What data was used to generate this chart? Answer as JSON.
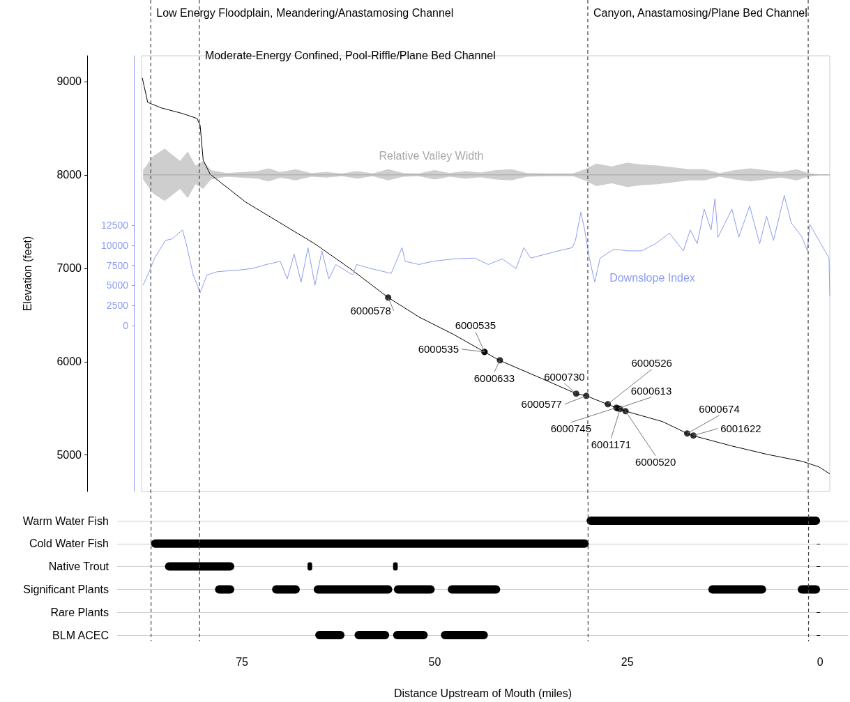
{
  "chart_data": [
    {
      "type": "line",
      "ylabel": "Elevation (feet)",
      "xlim": [
        88,
        -1.3
      ],
      "xticks": [
        75,
        50,
        25,
        0
      ],
      "ylim": [
        4610,
        9275
      ],
      "yticks": [
        5000,
        6000,
        7000,
        8000,
        9000
      ],
      "y2lim": [
        -20660,
        33590
      ],
      "y2ticks": [
        0,
        2500,
        5000,
        7500,
        10000,
        12500
      ],
      "tick_labels": "y",
      "marker": "none",
      "series": [
        {
          "color": "#000000",
          "x": [
            87.9,
            87.2,
            85.4,
            82.7,
            80.8,
            80.4,
            80.0,
            79.1,
            74.5,
            70.0,
            65.5,
            61.0,
            56.0,
            52.0,
            47.5,
            43.5,
            41.6,
            35.7,
            31.6,
            30.3,
            27.6,
            25.2,
            20.4,
            17.2,
            16.5,
            11.4,
            6.8,
            2.3,
            0.1,
            -1.3
          ],
          "values": [
            9037,
            8776,
            8716,
            8657,
            8604,
            8530,
            8157,
            8007,
            7709,
            7485,
            7261,
            7000,
            6687,
            6478,
            6291,
            6104,
            6015,
            5806,
            5657,
            5634,
            5545,
            5470,
            5358,
            5231,
            5209,
            5097,
            5007,
            4933,
            4873,
            4798
          ]
        },
        {
          "name": "Downslope Index",
          "color": "#8c9cf0",
          "axis": "y2",
          "x": [
            87.8,
            87.2,
            86.3,
            84.9,
            84.0,
            82.7,
            82.2,
            81.3,
            80.4,
            79.5,
            78.2,
            75.5,
            73.6,
            71.8,
            70.0,
            69.1,
            68.2,
            67.3,
            66.4,
            65.5,
            64.6,
            63.7,
            62.8,
            60.6,
            60.1,
            58.3,
            55.6,
            54.2,
            53.8,
            52.0,
            50.2,
            47.5,
            44.8,
            43.0,
            41.2,
            39.4,
            38.4,
            37.5,
            33.9,
            32.1,
            31.7,
            31.0,
            30.5,
            29.9,
            29.2,
            28.5,
            26.7,
            24.9,
            23.1,
            21.3,
            19.5,
            17.7,
            16.8,
            15.9,
            15.0,
            14.1,
            13.6,
            13.2,
            11.4,
            10.5,
            9.1,
            7.8,
            6.9,
            6.0,
            4.6,
            3.7,
            2.3,
            1.6,
            1.3,
            0.1,
            -1.2,
            -1.3
          ],
          "values": [
            5000,
            6300,
            8400,
            10600,
            10800,
            11900,
            10200,
            6300,
            4100,
            6300,
            6700,
            6900,
            7100,
            7600,
            8000,
            5800,
            8900,
            5400,
            9700,
            5000,
            9300,
            5800,
            7600,
            6300,
            7600,
            7100,
            6500,
            9700,
            8000,
            7600,
            8000,
            8300,
            8400,
            7600,
            8300,
            7100,
            9700,
            8400,
            9300,
            9700,
            10600,
            14100,
            11900,
            8400,
            5400,
            8400,
            9500,
            9300,
            9300,
            10200,
            11500,
            9300,
            11900,
            10200,
            14500,
            11900,
            15800,
            11000,
            14500,
            11000,
            14900,
            10200,
            13600,
            10600,
            16200,
            12800,
            11000,
            9300,
            12600,
            10600,
            8400,
            3700
          ]
        },
        {
          "name": "Relative Valley Width",
          "color": "#a6a6a6",
          "x": [
            87.8,
            86.5,
            85,
            83,
            82,
            81,
            80,
            79,
            77,
            73,
            71.5,
            70,
            68,
            66,
            64,
            62,
            60,
            58,
            56,
            54,
            52,
            50,
            48,
            46,
            44,
            42,
            40,
            38,
            35,
            32,
            30.5,
            29,
            27,
            25,
            23,
            21,
            19,
            17,
            15,
            13,
            11,
            9,
            7,
            5,
            3,
            1.5,
            0,
            -1.3
          ],
          "values": [
            8000,
            8000,
            8000,
            8000,
            8000,
            8000,
            8000,
            8000,
            8000,
            8000,
            8000,
            8000,
            8000,
            8000,
            8000,
            8000,
            8000,
            8000,
            8000,
            8000,
            8000,
            8000,
            8000,
            8000,
            8000,
            8000,
            8000,
            8000,
            8000,
            8000,
            8000,
            8000,
            8000,
            8000,
            8000,
            8000,
            8000,
            8000,
            8000,
            8000,
            8000,
            8000,
            8000,
            8000,
            8000,
            8000,
            8000,
            8000
          ],
          "upper": [
            8050,
            8200,
            8280,
            8150,
            8250,
            8100,
            8150,
            8050,
            8020,
            8040,
            8070,
            8030,
            8060,
            8020,
            8030,
            8015,
            8040,
            8015,
            8060,
            8020,
            8015,
            8050,
            8020,
            8040,
            8025,
            8050,
            8060,
            8020,
            8015,
            8015,
            8060,
            8120,
            8090,
            8130,
            8110,
            8100,
            8080,
            8060,
            8060,
            8020,
            8050,
            8070,
            8050,
            8030,
            8060,
            8020,
            8005,
            8005
          ],
          "lower": [
            7950,
            7800,
            7720,
            7850,
            7750,
            7900,
            7850,
            7950,
            7980,
            7960,
            7930,
            7970,
            7940,
            7980,
            7970,
            7985,
            7960,
            7985,
            7940,
            7980,
            7985,
            7950,
            7980,
            7960,
            7975,
            7950,
            7940,
            7980,
            7985,
            7985,
            7940,
            7880,
            7910,
            7870,
            7890,
            7900,
            7920,
            7940,
            7940,
            7980,
            7950,
            7930,
            7950,
            7970,
            7940,
            7980,
            7995,
            7995
          ]
        }
      ],
      "annotations": [
        {
          "text": "6000578",
          "x": 56.0,
          "y": 6687
        },
        {
          "text": "6000535",
          "x": 43.5,
          "y": 6104
        },
        {
          "text": "6000535",
          "x": 43.5,
          "y": 6104
        },
        {
          "text": "6000633",
          "x": 41.5,
          "y": 6015
        },
        {
          "text": "6000730",
          "x": 31.6,
          "y": 5657
        },
        {
          "text": "6000577",
          "x": 30.3,
          "y": 5634
        },
        {
          "text": "6000526",
          "x": 27.5,
          "y": 5545
        },
        {
          "text": "6000613",
          "x": 26.2,
          "y": 5500
        },
        {
          "text": "6000745",
          "x": 26.4,
          "y": 5507
        },
        {
          "text": "6001171",
          "x": 25.9,
          "y": 5493
        },
        {
          "text": "6000520",
          "x": 25.2,
          "y": 5470
        },
        {
          "text": "6000674",
          "x": 17.2,
          "y": 5231
        },
        {
          "text": "6001622",
          "x": 16.4,
          "y": 5209
        }
      ],
      "ref_lines": [
        {
          "axis": "x",
          "value": 86.8,
          "label": "Low Energy Floodplain, Meandering/Anastamosing Channel",
          "line_style": "dashed",
          "color": "#444444"
        },
        {
          "axis": "x",
          "value": 80.5,
          "label": "Moderate-Energy Confined, Pool-Riffle/Plane Bed Channel",
          "line_style": "dashed",
          "color": "#444444"
        },
        {
          "axis": "x",
          "value": 30.1,
          "label": "Canyon, Anastamosing/Plane Bed Channel",
          "line_style": "dashed",
          "color": "#444444"
        },
        {
          "axis": "x",
          "value": 1.5,
          "label": null,
          "line_style": "dashed",
          "color": "#444444"
        }
      ]
    },
    {
      "type": "bar",
      "orientation": "horizontal",
      "xlabel": "Distance Upstream of Mouth (miles)",
      "xlim": [
        91.2,
        -3.7
      ],
      "xticks": [
        75,
        50,
        25,
        0
      ],
      "grid": "y",
      "categories": [
        "Warm Water Fish",
        "Cold Water Fish",
        "Native Trout",
        "Significant Plants",
        "Rare Plants",
        "BLM ACEC"
      ],
      "series": [
        {
          "color": "#000000",
          "base": [
            0,
            30,
            76,
            76,
            null,
            61.7
          ],
          "values": [
            30.3,
            56.8,
            9,
            2.5,
            null,
            3.8
          ]
        },
        {
          "color": "#000000",
          "base": [
            null,
            null,
            65.9,
            67.5,
            null,
            55.9
          ],
          "values": [
            null,
            null,
            0.6,
            3.6,
            null,
            4.5
          ]
        },
        {
          "color": "#000000",
          "base": [
            null,
            null,
            54.8,
            55.5,
            null,
            50.9
          ],
          "values": [
            null,
            null,
            0.6,
            10.2,
            null,
            4.5
          ]
        },
        {
          "color": "#000000",
          "base": [
            null,
            null,
            null,
            50,
            null,
            43.1
          ],
          "values": [
            null,
            null,
            null,
            5.3,
            null,
            6.1
          ]
        },
        {
          "color": "#000000",
          "base": [
            null,
            null,
            null,
            41.5,
            null,
            null
          ],
          "values": [
            null,
            null,
            null,
            6.8,
            null,
            null
          ]
        },
        {
          "color": "#000000",
          "base": [
            null,
            null,
            null,
            7,
            null,
            null
          ],
          "values": [
            null,
            null,
            null,
            7.5,
            null,
            null
          ]
        },
        {
          "color": "#000000",
          "base": [
            null,
            null,
            null,
            0,
            null,
            null
          ],
          "values": [
            null,
            null,
            null,
            2.9,
            null,
            null
          ]
        }
      ],
      "ref_lines": [
        {
          "axis": "x",
          "value": 86.8,
          "line_style": "dashed",
          "color": "#444444"
        },
        {
          "axis": "x",
          "value": 80.5,
          "line_style": "dashed",
          "color": "#444444"
        },
        {
          "axis": "x",
          "value": 30.1,
          "line_style": "dashed",
          "color": "#444444"
        },
        {
          "axis": "x",
          "value": 1.5,
          "line_style": "dashed",
          "color": "#444444"
        }
      ]
    }
  ]
}
